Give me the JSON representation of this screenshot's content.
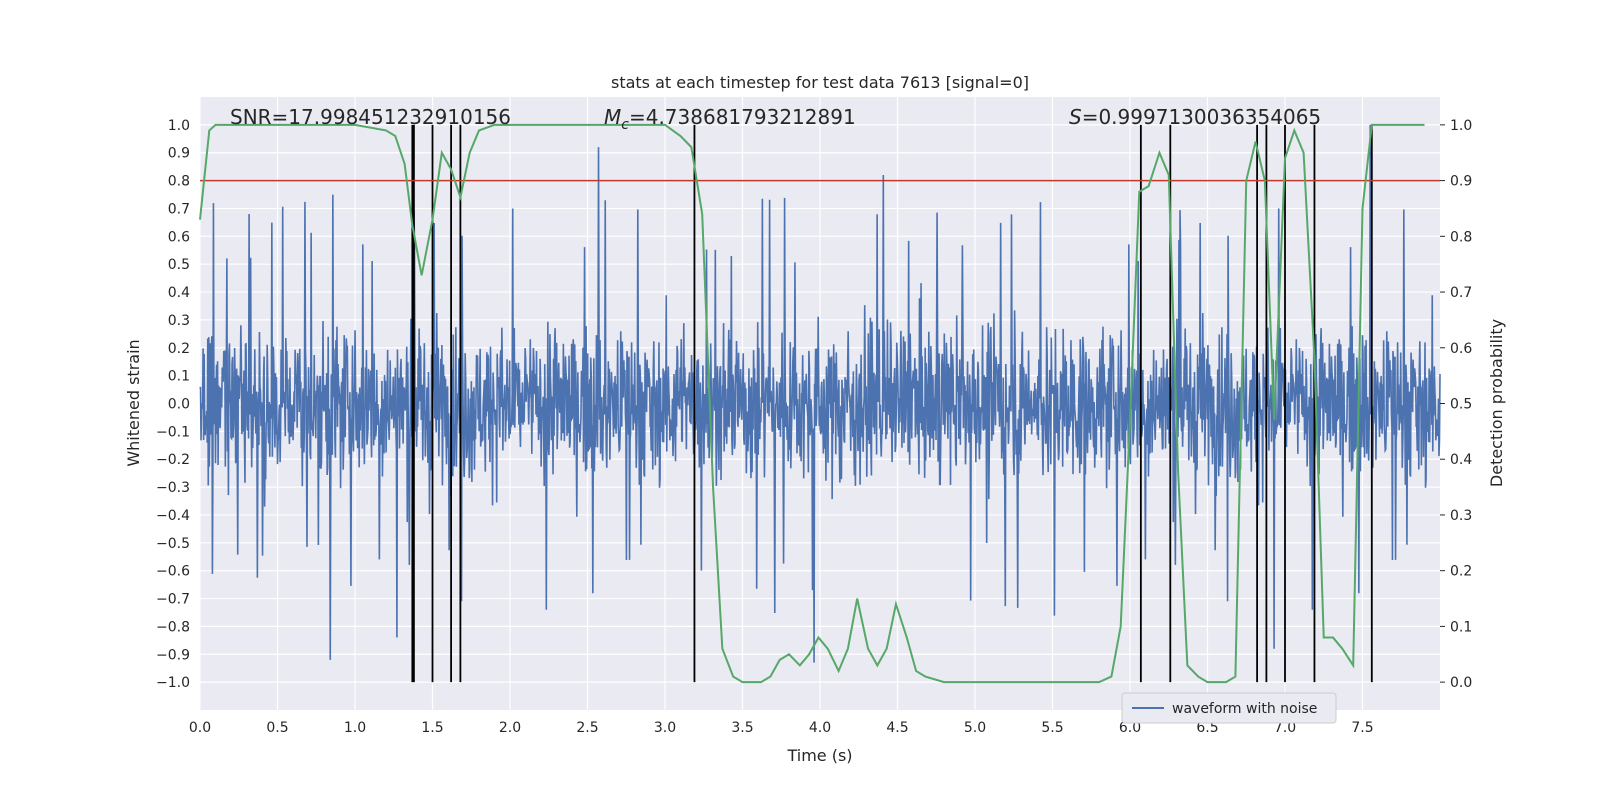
{
  "chart_data": {
    "type": "line",
    "title": "stats at each timestep for test data 7613 [signal=0]",
    "xlabel": "Time (s)",
    "ylabel_left": "Whitened strain",
    "ylabel_right": "Detection probability",
    "xlim": [
      0.0,
      8.0
    ],
    "ylim_left": [
      -1.1,
      1.1
    ],
    "ylim_right": [
      -0.05,
      1.05
    ],
    "xticks": [
      "0.0",
      "0.5",
      "1.0",
      "1.5",
      "2.0",
      "2.5",
      "3.0",
      "3.5",
      "4.0",
      "4.5",
      "5.0",
      "5.5",
      "6.0",
      "6.5",
      "7.0",
      "7.5"
    ],
    "yticks_left": [
      "1.0",
      "0.9",
      "0.8",
      "0.7",
      "0.6",
      "0.5",
      "0.4",
      "0.3",
      "0.2",
      "0.1",
      "0.0",
      "−0.1",
      "−0.2",
      "−0.3",
      "−0.4",
      "−0.5",
      "−0.6",
      "−0.7",
      "−0.8",
      "−0.9",
      "−1.0"
    ],
    "yticks_right": [
      "1.0",
      "0.9",
      "0.8",
      "0.7",
      "0.6",
      "0.5",
      "0.4",
      "0.3",
      "0.2",
      "0.1",
      "0.0"
    ],
    "grid": true,
    "legend_position": "bottom-right",
    "annotations": {
      "snr": "SNR=17.998451232910156",
      "mc_symbol": "M",
      "mc_sub": "c",
      "mc_value": "=4.738681793212891",
      "s_symbol": "S",
      "s_value": "=0.9997130036354065"
    },
    "threshold": {
      "value": 0.9,
      "axis": "right",
      "color": "#c0392b"
    },
    "series": [
      {
        "name": "waveform with noise",
        "axis": "left",
        "kind": "noise",
        "color": "#4c72b0",
        "envelope_typical": 0.45,
        "peak_max": 1.0,
        "peak_min": -1.0,
        "notable_peaks": [
          {
            "x": 2.57,
            "y": 0.92
          },
          {
            "x": 4.41,
            "y": 0.82
          },
          {
            "x": 7.55,
            "y": 1.0
          },
          {
            "x": 0.84,
            "y": -0.92
          },
          {
            "x": 1.27,
            "y": -0.84
          },
          {
            "x": 3.96,
            "y": -0.93
          },
          {
            "x": 6.93,
            "y": -0.88
          }
        ]
      },
      {
        "name": "",
        "axis": "right",
        "kind": "line",
        "color": "#55a868",
        "x": [
          0.0,
          0.06,
          0.1,
          0.2,
          0.4,
          0.6,
          0.8,
          1.0,
          1.2,
          1.26,
          1.32,
          1.37,
          1.43,
          1.5,
          1.56,
          1.62,
          1.68,
          1.74,
          1.8,
          1.9,
          2.1,
          2.3,
          2.5,
          2.7,
          2.9,
          3.0,
          3.1,
          3.17,
          3.24,
          3.31,
          3.37,
          3.44,
          3.5,
          3.56,
          3.62,
          3.68,
          3.74,
          3.8,
          3.87,
          3.93,
          3.99,
          4.05,
          4.12,
          4.18,
          4.24,
          4.31,
          4.37,
          4.43,
          4.49,
          4.56,
          4.62,
          4.68,
          4.8,
          5.0,
          5.3,
          5.6,
          5.8,
          5.88,
          5.94,
          6.0,
          6.06,
          6.12,
          6.19,
          6.25,
          6.31,
          6.37,
          6.44,
          6.5,
          6.56,
          6.62,
          6.68,
          6.75,
          6.81,
          6.87,
          6.93,
          7.0,
          7.06,
          7.12,
          7.19,
          7.25,
          7.31,
          7.37,
          7.44,
          7.5,
          7.56,
          7.62,
          7.68,
          7.9
        ],
        "y": [
          0.83,
          0.99,
          1.0,
          1.0,
          1.0,
          1.0,
          1.0,
          1.0,
          0.99,
          0.98,
          0.93,
          0.82,
          0.73,
          0.83,
          0.95,
          0.92,
          0.87,
          0.95,
          0.99,
          1.0,
          1.0,
          1.0,
          1.0,
          1.0,
          1.0,
          1.0,
          0.98,
          0.96,
          0.84,
          0.35,
          0.06,
          0.01,
          0.0,
          0.0,
          0.0,
          0.01,
          0.04,
          0.05,
          0.03,
          0.05,
          0.08,
          0.06,
          0.02,
          0.06,
          0.15,
          0.06,
          0.03,
          0.06,
          0.14,
          0.08,
          0.02,
          0.01,
          0.0,
          0.0,
          0.0,
          0.0,
          0.0,
          0.01,
          0.1,
          0.47,
          0.88,
          0.89,
          0.95,
          0.91,
          0.38,
          0.03,
          0.01,
          0.0,
          0.0,
          0.0,
          0.01,
          0.9,
          0.97,
          0.9,
          0.47,
          0.94,
          0.99,
          0.95,
          0.58,
          0.08,
          0.08,
          0.06,
          0.03,
          0.85,
          1.0,
          1.0,
          1.0,
          1.0
        ]
      }
    ],
    "vertical_markers": [
      1.37,
      1.38,
      1.5,
      1.62,
      1.68,
      3.19,
      6.07,
      6.26,
      6.82,
      6.88,
      7.0,
      7.19,
      7.56
    ]
  }
}
